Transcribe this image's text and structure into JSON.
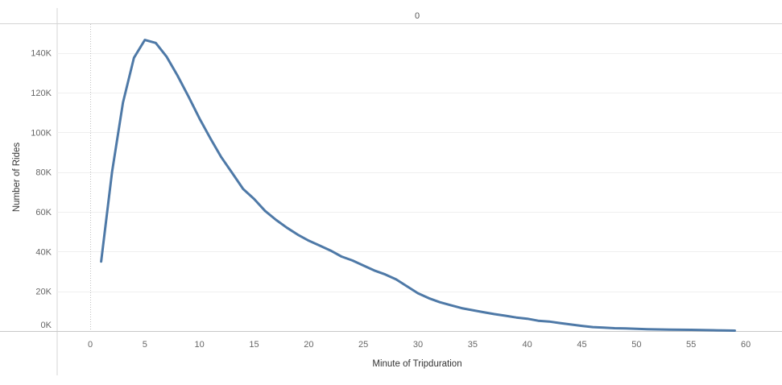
{
  "chart_data": {
    "type": "line",
    "pane_header": "0",
    "xlabel": "Minute of Tripduration",
    "ylabel": "Number of Rides",
    "xlim": [
      -3,
      63
    ],
    "ylim": [
      0,
      150000
    ],
    "x_ticks": [
      0,
      5,
      10,
      15,
      20,
      25,
      30,
      35,
      40,
      45,
      50,
      55,
      60
    ],
    "x_tick_labels": [
      "0",
      "5",
      "10",
      "15",
      "20",
      "25",
      "30",
      "35",
      "40",
      "45",
      "50",
      "55",
      "60"
    ],
    "y_ticks": [
      0,
      20000,
      40000,
      60000,
      80000,
      100000,
      120000,
      140000
    ],
    "y_tick_labels": [
      "0K",
      "20K",
      "40K",
      "60K",
      "80K",
      "100K",
      "120K",
      "140K"
    ],
    "grid": true,
    "line_color": "#4e79a7",
    "series": [
      {
        "x": [
          1,
          2,
          3,
          4,
          5,
          6,
          7,
          8,
          9,
          10,
          11,
          12,
          13,
          14,
          15,
          16,
          17,
          18,
          19,
          20,
          21,
          22,
          23,
          24,
          25,
          26,
          27,
          28,
          29,
          30,
          31,
          32,
          33,
          34,
          35,
          36,
          37,
          38,
          39,
          40,
          41,
          42,
          43,
          44,
          45,
          46,
          47,
          48,
          49,
          50,
          51,
          52,
          53,
          54,
          55,
          56,
          57,
          58,
          59
        ],
        "values": [
          35000,
          80000,
          115000,
          137500,
          146500,
          145000,
          138000,
          128500,
          118000,
          107000,
          97000,
          87500,
          79500,
          71500,
          66500,
          60500,
          56000,
          52000,
          48500,
          45500,
          43000,
          40500,
          37500,
          35500,
          33000,
          30500,
          28500,
          26000,
          22500,
          19000,
          16500,
          14500,
          13000,
          11500,
          10500,
          9500,
          8500,
          7700,
          6800,
          6200,
          5200,
          4800,
          4000,
          3300,
          2600,
          2000,
          1700,
          1400,
          1300,
          1100,
          950,
          800,
          700,
          650,
          600,
          500,
          400,
          300,
          200
        ]
      }
    ]
  }
}
